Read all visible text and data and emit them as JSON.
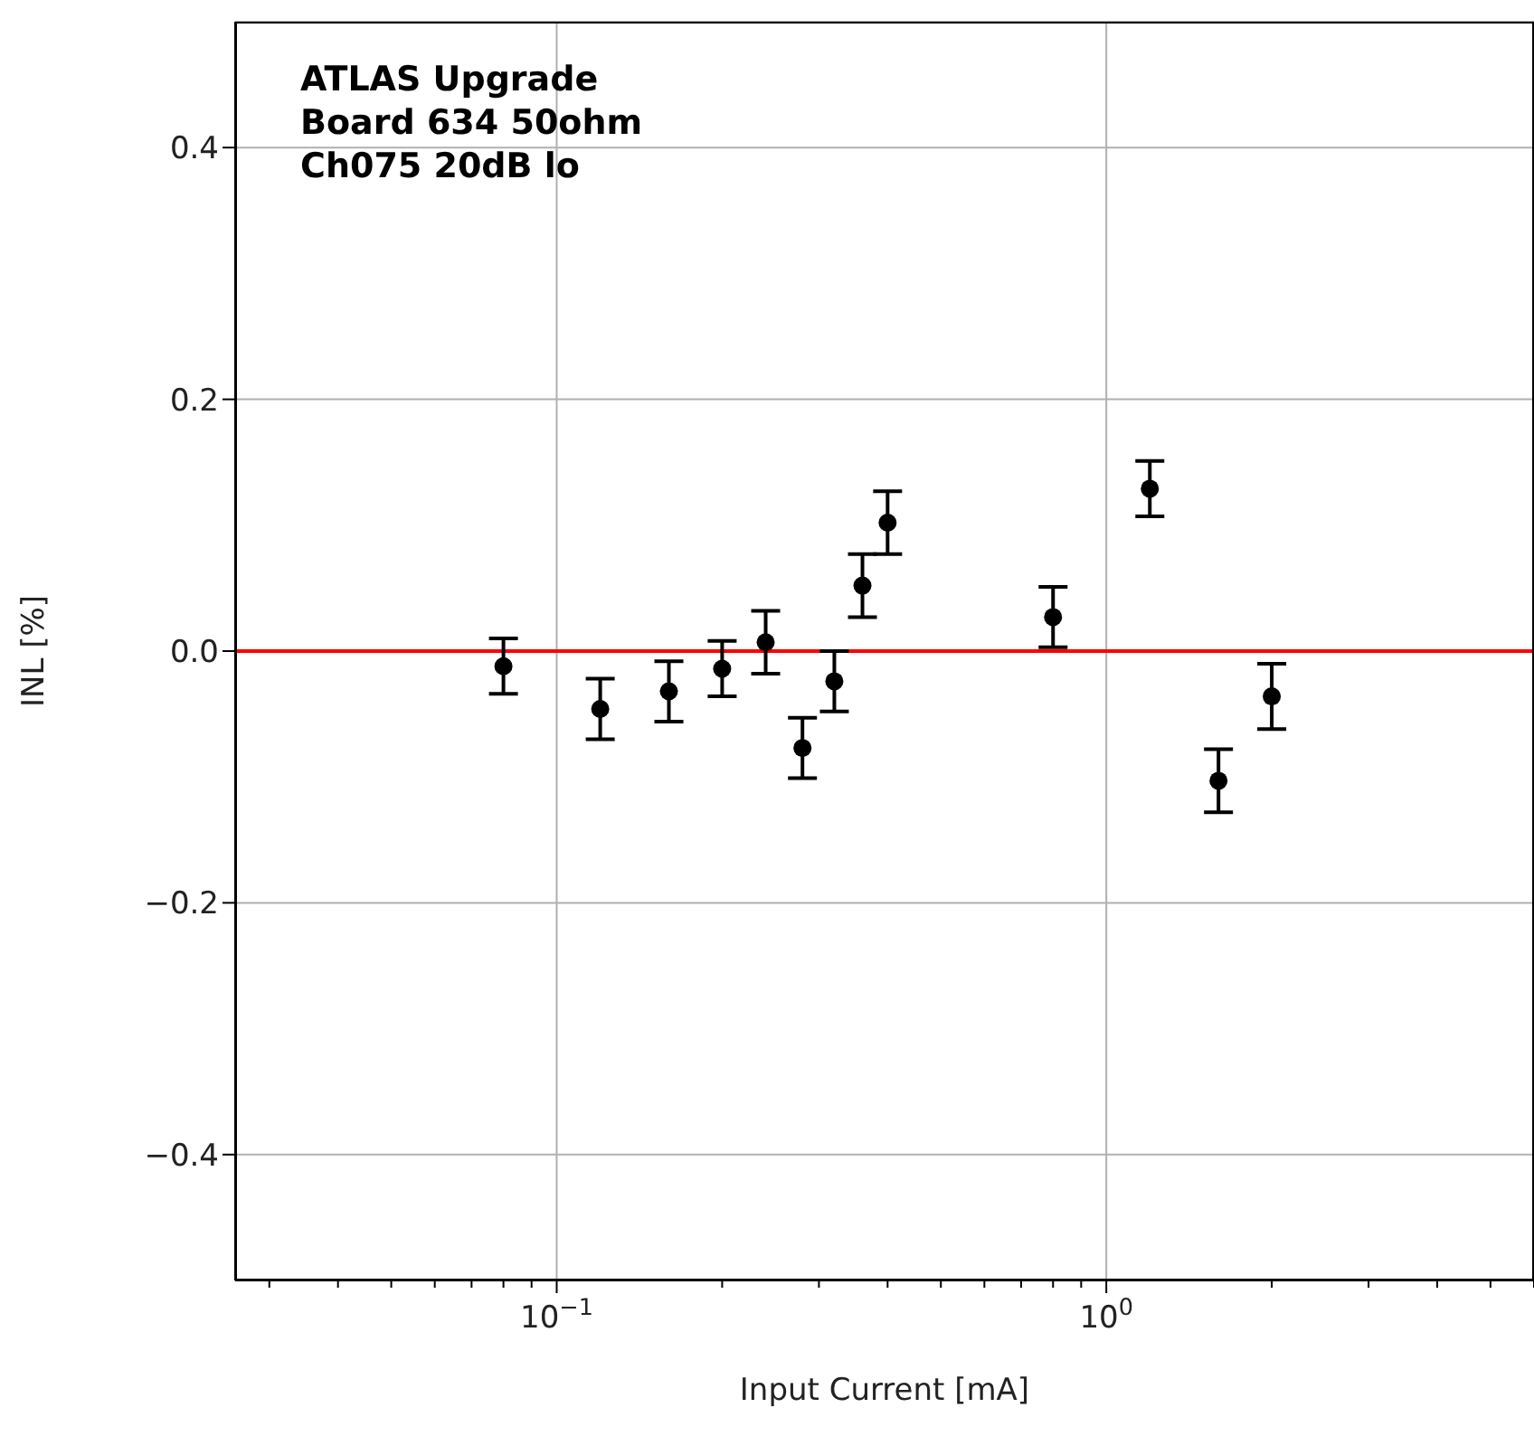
{
  "chart_data": {
    "type": "scatter",
    "xlabel": "Input Current [mA]",
    "ylabel": "INL [%]",
    "annotations": [
      "ATLAS Upgrade",
      "Board 634 50ohm",
      "Ch075 20dB lo"
    ],
    "log": "x",
    "xlim": [
      0.026,
      6
    ],
    "ylim": [
      -0.5,
      0.5
    ],
    "xticks": [
      {
        "value": 0.03,
        "label": null
      },
      {
        "value": 0.04,
        "label": null
      },
      {
        "value": 0.05,
        "label": null
      },
      {
        "value": 0.06,
        "label": null
      },
      {
        "value": 0.07,
        "label": null
      },
      {
        "value": 0.08,
        "label": null
      },
      {
        "value": 0.09,
        "label": null
      },
      {
        "value": 0.1,
        "label": "10$^{−1}$"
      },
      {
        "value": 0.2,
        "label": null
      },
      {
        "value": 0.3,
        "label": null
      },
      {
        "value": 0.4,
        "label": null
      },
      {
        "value": 0.5,
        "label": null
      },
      {
        "value": 0.6,
        "label": null
      },
      {
        "value": 0.7,
        "label": null
      },
      {
        "value": 0.8,
        "label": null
      },
      {
        "value": 0.9,
        "label": null
      },
      {
        "value": 1,
        "label": "10$^{0}$"
      },
      {
        "value": 2,
        "label": null
      },
      {
        "value": 3,
        "label": null
      },
      {
        "value": 4,
        "label": null
      },
      {
        "value": 5,
        "label": null
      },
      {
        "value": 6,
        "label": null
      }
    ],
    "yticks": [
      {
        "value": -0.4,
        "label": "−0.4"
      },
      {
        "value": -0.2,
        "label": "−0.2"
      },
      {
        "value": 0,
        "label": "0.0"
      },
      0.2,
      0.4
    ],
    "grid": true,
    "marker": "circle",
    "x": [
      0.08,
      0.12,
      0.16,
      0.2,
      0.24,
      0.28,
      0.32,
      0.36,
      0.4,
      0.8,
      1.2,
      1.6,
      2
    ],
    "series": [
      {
        "color": "#000000",
        "values": [
          -0.012,
          -0.046,
          -0.032,
          -0.014,
          0.007,
          -0.077,
          -0.024,
          0.052,
          0.102,
          0.027,
          0.129,
          -0.103,
          -0.036
        ],
        "errors": [
          0.022,
          0.024,
          0.024,
          0.022,
          0.025,
          0.024,
          0.024,
          0.025,
          0.025,
          0.024,
          0.022,
          0.025,
          0.026
        ]
      }
    ],
    "ref_lines": [
      {
        "axis": "y",
        "value": 0,
        "color": "#ff0000"
      }
    ]
  }
}
